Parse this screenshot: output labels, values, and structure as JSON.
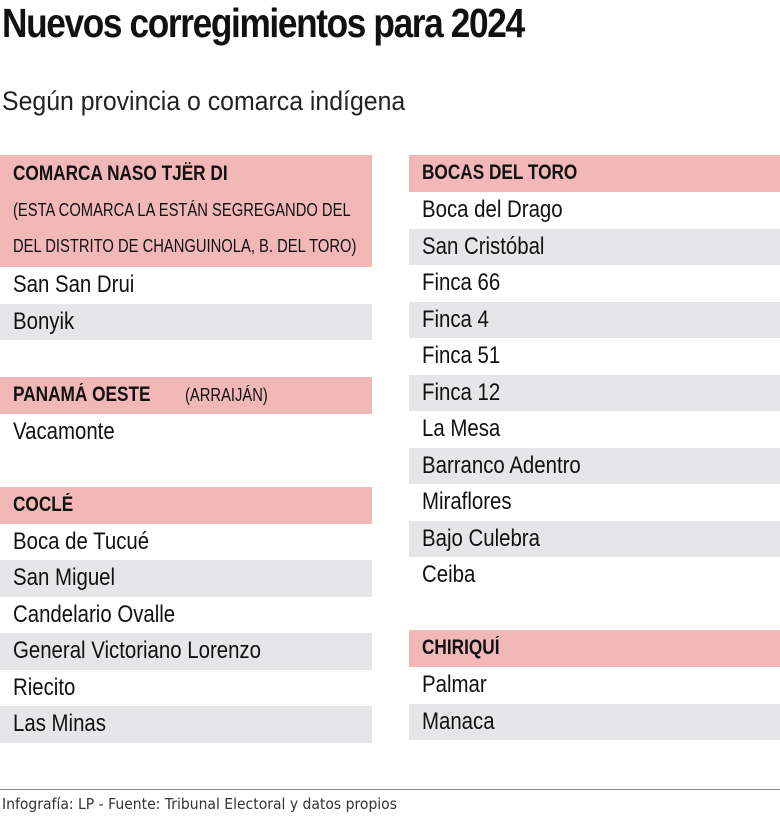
{
  "header": {
    "title": "Nuevos corregimientos para 2024",
    "subtitle": "Según provincia o comarca indígena"
  },
  "colors": {
    "header_bg": "#f2b8b8",
    "alt_row_bg": "#e6e6e8",
    "text": "#111111"
  },
  "left_column": {
    "groups": [
      {
        "name": "COMARCA NASO TJËR DI",
        "note_lines": [
          "(ESTA COMARCA LA ESTÁN SEGREGANDO DEL",
          "DEL DISTRITO DE CHANGUINOLA, B. DEL TORO)"
        ],
        "items": [
          "San San Drui",
          "Bonyik"
        ]
      },
      {
        "name": "PANAMÁ OESTE",
        "note": "(ARRAIJÁN)",
        "items": [
          "Vacamonte"
        ]
      },
      {
        "name": "COCLÉ",
        "items": [
          "Boca de Tucué",
          "San Miguel",
          "Candelario Ovalle",
          "General Victoriano Lorenzo",
          "Riecito",
          "Las Minas"
        ]
      }
    ]
  },
  "right_column": {
    "groups": [
      {
        "name": "BOCAS DEL TORO",
        "items": [
          "Boca del Drago",
          "San Cristóbal",
          "Finca 66",
          "Finca 4",
          "Finca 51",
          "Finca 12",
          "La Mesa",
          "Barranco Adentro",
          "Miraflores",
          "Bajo Culebra",
          "Ceiba"
        ]
      },
      {
        "name": "CHIRIQUÍ",
        "items": [
          "Palmar",
          "Manaca"
        ]
      }
    ]
  },
  "footer": {
    "credit": "Infografía: LP - Fuente: Tribunal Electoral y datos propios"
  }
}
